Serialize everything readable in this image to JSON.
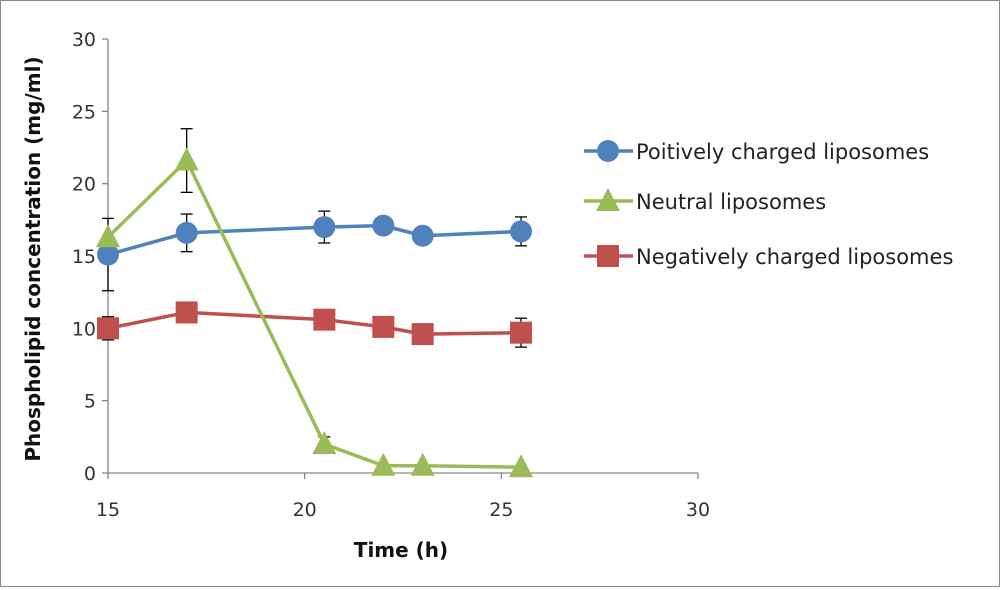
{
  "chart_data": {
    "type": "line",
    "xlabel": "Time (h)",
    "ylabel": "Phospholipid concentration (mg/ml)",
    "xlim": [
      15,
      30
    ],
    "ylim": [
      0,
      30
    ],
    "xticks": [
      15,
      20,
      25,
      30
    ],
    "yticks": [
      0,
      5,
      10,
      15,
      20,
      25,
      30
    ],
    "grid": false,
    "legend_position": "right",
    "series": [
      {
        "name": "Poitively charged liposomes",
        "color": "#4f81bd",
        "marker": "circle",
        "x": [
          15,
          17,
          20.5,
          22,
          23,
          25.5
        ],
        "y": [
          15.1,
          16.6,
          17.0,
          17.1,
          16.4,
          16.7
        ],
        "err": [
          2.5,
          1.3,
          1.1,
          0,
          0,
          1.0
        ]
      },
      {
        "name": "Neutral liposomes",
        "color": "#9bbb59",
        "marker": "triangle",
        "x": [
          15,
          17,
          20.5,
          22,
          23,
          25.5
        ],
        "y": [
          16.3,
          21.6,
          2.0,
          0.5,
          0.5,
          0.4
        ],
        "err": [
          0,
          2.2,
          0.5,
          0,
          0,
          0
        ]
      },
      {
        "name": "Negatively charged liposomes",
        "color": "#c0504d",
        "marker": "square",
        "x": [
          15,
          17,
          20.5,
          22,
          23,
          25.5
        ],
        "y": [
          10.0,
          11.1,
          10.6,
          10.1,
          9.6,
          9.7
        ],
        "err": [
          0.8,
          0,
          0,
          0,
          0,
          1.0
        ]
      }
    ]
  }
}
